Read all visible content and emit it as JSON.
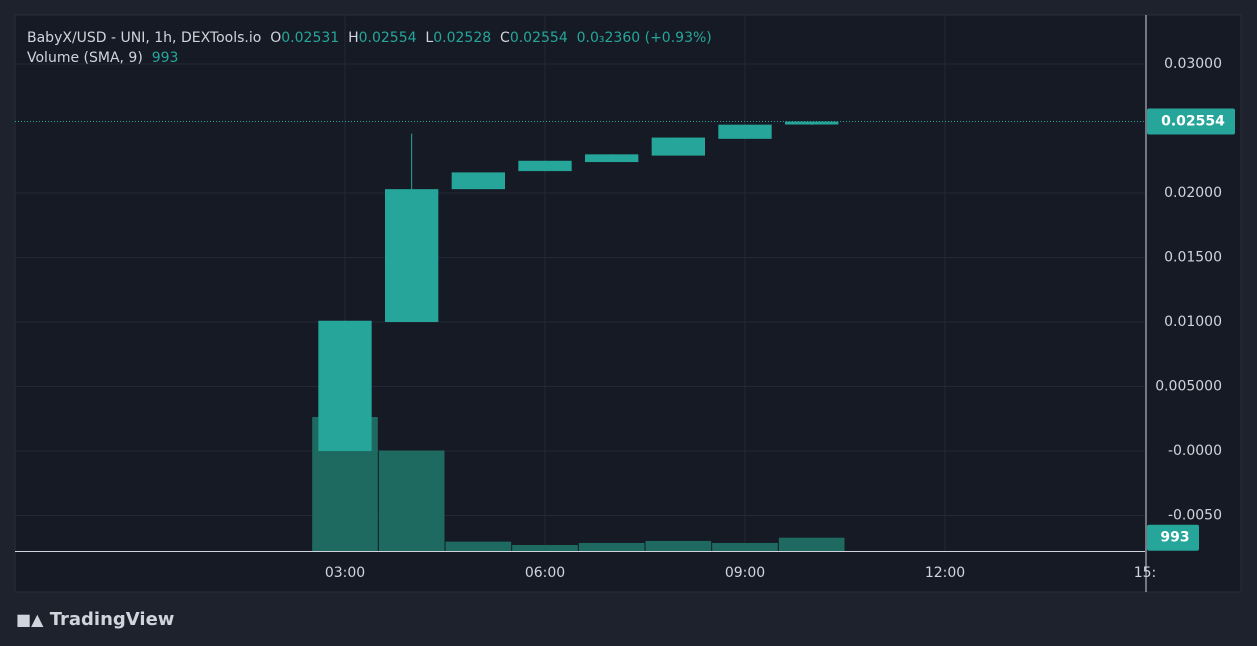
{
  "chart_data": {
    "type": "candlestick",
    "symbol": "BabyX/USD - UNI, 1h, DEXTools.io",
    "ohlc_letters": [
      "O",
      "H",
      "L",
      "C"
    ],
    "change": {
      "value": 0.000236,
      "label": "0.0₃2360"
    },
    "change_pct": {
      "value": 0.93,
      "label": "(+0.93%)"
    },
    "volume_title": "Volume (SMA, 9)",
    "brand": "TradingView",
    "x": [
      3,
      4,
      5,
      6,
      7,
      8,
      9,
      10
    ],
    "open": [
      0.0,
      0.01,
      0.0203,
      0.0217,
      0.0224,
      0.0229,
      0.0242,
      0.02531
    ],
    "high": [
      0.0101,
      0.0246,
      0.0216,
      0.0225,
      0.023,
      0.0243,
      0.0253,
      0.02554
    ],
    "low": [
      0.0,
      0.01,
      0.0203,
      0.0217,
      0.0224,
      0.0229,
      0.0242,
      0.02528
    ],
    "close": [
      0.0101,
      0.0203,
      0.0216,
      0.0225,
      0.023,
      0.0243,
      0.0253,
      0.02554
    ],
    "volume": [
      10000,
      7500,
      700,
      450,
      600,
      750,
      600,
      993
    ],
    "color": "#26a69a",
    "volume_color": "#1f6a60",
    "xlim": [
      -1.95,
      15
    ],
    "ylim": [
      -0.00775,
      0.0338
    ],
    "volume_lim": [
      0,
      40000
    ],
    "xticks": [
      {
        "value": 3,
        "label": "03:00"
      },
      {
        "value": 6,
        "label": "06:00"
      },
      {
        "value": 9,
        "label": "09:00"
      },
      {
        "value": 12,
        "label": "12:00"
      },
      {
        "value": 15,
        "label": "15:"
      }
    ],
    "yticks": [
      {
        "value": 0.03,
        "label": "0.03000"
      },
      {
        "value": 0.02,
        "label": "0.02000"
      },
      {
        "value": 0.015,
        "label": "0.01500"
      },
      {
        "value": 0.01,
        "label": "0.01000"
      },
      {
        "value": 0.005,
        "label": "0.005000"
      },
      {
        "value": 0,
        "label": "-0.0000"
      },
      {
        "value": -0.005,
        "label": "-0.0050"
      }
    ],
    "grid": true
  }
}
